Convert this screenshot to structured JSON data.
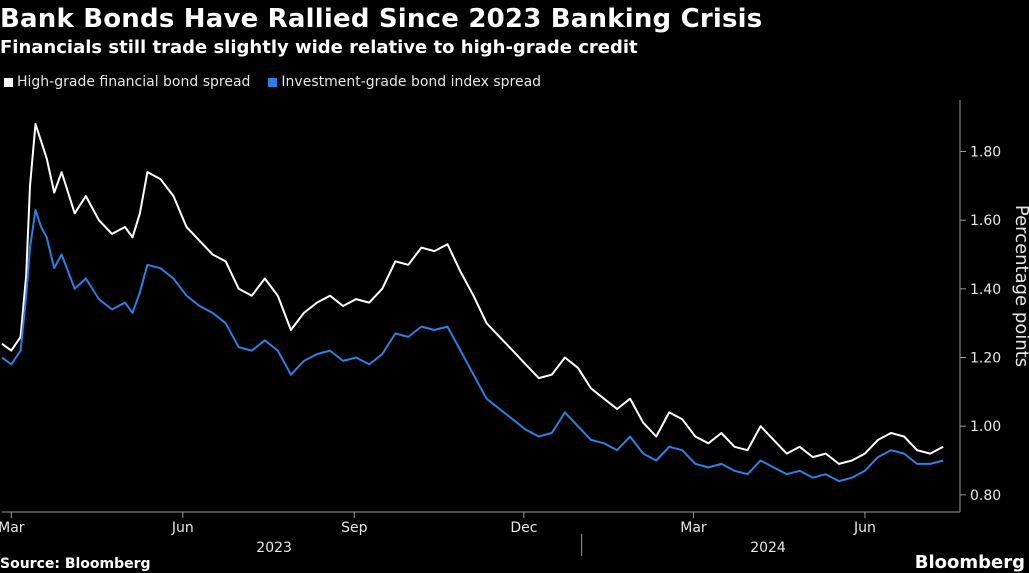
{
  "header": {
    "title": "Bank Bonds Have Rallied Since 2023 Banking Crisis",
    "subtitle": "Financials still trade slightly wide relative to high-grade credit"
  },
  "footer": {
    "source": "Source: Bloomberg",
    "brand": "Bloomberg"
  },
  "colors": {
    "background": "#000000",
    "series_financial": "#ffffff",
    "series_ig": "#2f7fe0"
  },
  "chart_data": {
    "type": "line",
    "ylabel": "Percentage points",
    "ylim": [
      0.75,
      1.95
    ],
    "yticks": [
      0.8,
      1.0,
      1.2,
      1.4,
      1.6,
      1.8
    ],
    "ytick_labels": [
      "0.80",
      "1.00",
      "1.20",
      "1.40",
      "1.60",
      "1.80"
    ],
    "xlim": [
      "2023-02-24",
      "2024-07-22"
    ],
    "x_ticks": [
      {
        "date": "2023-03-01",
        "label": "Mar"
      },
      {
        "date": "2023-06-01",
        "label": "Jun"
      },
      {
        "date": "2023-09-01",
        "label": "Sep"
      },
      {
        "date": "2023-12-01",
        "label": "Dec"
      },
      {
        "date": "2024-03-01",
        "label": "Mar"
      },
      {
        "date": "2024-06-01",
        "label": "Jun"
      }
    ],
    "year_labels": [
      {
        "label": "2023",
        "date": "2023-07-20"
      },
      {
        "label": "2024",
        "date": "2024-04-10"
      }
    ],
    "year_divider": "2024-01-01",
    "grid": false,
    "legend_position": "top-left",
    "series": [
      {
        "name": "High-grade financial bond spread",
        "color": "#ffffff",
        "points": [
          [
            "2023-02-24",
            1.24
          ],
          [
            "2023-03-01",
            1.22
          ],
          [
            "2023-03-06",
            1.26
          ],
          [
            "2023-03-09",
            1.44
          ],
          [
            "2023-03-11",
            1.7
          ],
          [
            "2023-03-14",
            1.88
          ],
          [
            "2023-03-17",
            1.83
          ],
          [
            "2023-03-20",
            1.78
          ],
          [
            "2023-03-24",
            1.68
          ],
          [
            "2023-03-28",
            1.74
          ],
          [
            "2023-04-04",
            1.62
          ],
          [
            "2023-04-10",
            1.67
          ],
          [
            "2023-04-17",
            1.6
          ],
          [
            "2023-04-24",
            1.56
          ],
          [
            "2023-05-01",
            1.58
          ],
          [
            "2023-05-05",
            1.55
          ],
          [
            "2023-05-09",
            1.62
          ],
          [
            "2023-05-13",
            1.74
          ],
          [
            "2023-05-20",
            1.72
          ],
          [
            "2023-05-27",
            1.67
          ],
          [
            "2023-06-03",
            1.58
          ],
          [
            "2023-06-10",
            1.54
          ],
          [
            "2023-06-17",
            1.5
          ],
          [
            "2023-06-24",
            1.48
          ],
          [
            "2023-07-01",
            1.4
          ],
          [
            "2023-07-08",
            1.38
          ],
          [
            "2023-07-15",
            1.43
          ],
          [
            "2023-07-22",
            1.38
          ],
          [
            "2023-07-29",
            1.28
          ],
          [
            "2023-08-05",
            1.33
          ],
          [
            "2023-08-12",
            1.36
          ],
          [
            "2023-08-19",
            1.38
          ],
          [
            "2023-08-26",
            1.35
          ],
          [
            "2023-09-02",
            1.37
          ],
          [
            "2023-09-09",
            1.36
          ],
          [
            "2023-09-16",
            1.4
          ],
          [
            "2023-09-23",
            1.48
          ],
          [
            "2023-09-30",
            1.47
          ],
          [
            "2023-10-07",
            1.52
          ],
          [
            "2023-10-14",
            1.51
          ],
          [
            "2023-10-21",
            1.53
          ],
          [
            "2023-10-28",
            1.45
          ],
          [
            "2023-11-04",
            1.38
          ],
          [
            "2023-11-11",
            1.3
          ],
          [
            "2023-11-18",
            1.26
          ],
          [
            "2023-11-25",
            1.22
          ],
          [
            "2023-12-02",
            1.18
          ],
          [
            "2023-12-09",
            1.14
          ],
          [
            "2023-12-16",
            1.15
          ],
          [
            "2023-12-23",
            1.2
          ],
          [
            "2023-12-30",
            1.17
          ],
          [
            "2024-01-06",
            1.11
          ],
          [
            "2024-01-13",
            1.08
          ],
          [
            "2024-01-20",
            1.05
          ],
          [
            "2024-01-27",
            1.08
          ],
          [
            "2024-02-03",
            1.01
          ],
          [
            "2024-02-10",
            0.97
          ],
          [
            "2024-02-17",
            1.04
          ],
          [
            "2024-02-24",
            1.02
          ],
          [
            "2024-03-02",
            0.97
          ],
          [
            "2024-03-09",
            0.95
          ],
          [
            "2024-03-16",
            0.98
          ],
          [
            "2024-03-23",
            0.94
          ],
          [
            "2024-03-30",
            0.93
          ],
          [
            "2024-04-06",
            1.0
          ],
          [
            "2024-04-13",
            0.96
          ],
          [
            "2024-04-20",
            0.92
          ],
          [
            "2024-04-27",
            0.94
          ],
          [
            "2024-05-04",
            0.91
          ],
          [
            "2024-05-11",
            0.92
          ],
          [
            "2024-05-18",
            0.89
          ],
          [
            "2024-05-25",
            0.9
          ],
          [
            "2024-06-01",
            0.92
          ],
          [
            "2024-06-08",
            0.96
          ],
          [
            "2024-06-15",
            0.98
          ],
          [
            "2024-06-22",
            0.97
          ],
          [
            "2024-06-29",
            0.93
          ],
          [
            "2024-07-06",
            0.92
          ],
          [
            "2024-07-13",
            0.94
          ]
        ]
      },
      {
        "name": "Investment-grade bond index spread",
        "color": "#2f7fe0",
        "points": [
          [
            "2023-02-24",
            1.2
          ],
          [
            "2023-03-01",
            1.18
          ],
          [
            "2023-03-06",
            1.22
          ],
          [
            "2023-03-09",
            1.38
          ],
          [
            "2023-03-11",
            1.52
          ],
          [
            "2023-03-14",
            1.63
          ],
          [
            "2023-03-17",
            1.58
          ],
          [
            "2023-03-20",
            1.55
          ],
          [
            "2023-03-24",
            1.46
          ],
          [
            "2023-03-28",
            1.5
          ],
          [
            "2023-04-04",
            1.4
          ],
          [
            "2023-04-10",
            1.43
          ],
          [
            "2023-04-17",
            1.37
          ],
          [
            "2023-04-24",
            1.34
          ],
          [
            "2023-05-01",
            1.36
          ],
          [
            "2023-05-05",
            1.33
          ],
          [
            "2023-05-09",
            1.39
          ],
          [
            "2023-05-13",
            1.47
          ],
          [
            "2023-05-20",
            1.46
          ],
          [
            "2023-05-27",
            1.43
          ],
          [
            "2023-06-03",
            1.38
          ],
          [
            "2023-06-10",
            1.35
          ],
          [
            "2023-06-17",
            1.33
          ],
          [
            "2023-06-24",
            1.3
          ],
          [
            "2023-07-01",
            1.23
          ],
          [
            "2023-07-08",
            1.22
          ],
          [
            "2023-07-15",
            1.25
          ],
          [
            "2023-07-22",
            1.22
          ],
          [
            "2023-07-29",
            1.15
          ],
          [
            "2023-08-05",
            1.19
          ],
          [
            "2023-08-12",
            1.21
          ],
          [
            "2023-08-19",
            1.22
          ],
          [
            "2023-08-26",
            1.19
          ],
          [
            "2023-09-02",
            1.2
          ],
          [
            "2023-09-09",
            1.18
          ],
          [
            "2023-09-16",
            1.21
          ],
          [
            "2023-09-23",
            1.27
          ],
          [
            "2023-09-30",
            1.26
          ],
          [
            "2023-10-07",
            1.29
          ],
          [
            "2023-10-14",
            1.28
          ],
          [
            "2023-10-21",
            1.29
          ],
          [
            "2023-10-28",
            1.22
          ],
          [
            "2023-11-04",
            1.15
          ],
          [
            "2023-11-11",
            1.08
          ],
          [
            "2023-11-18",
            1.05
          ],
          [
            "2023-11-25",
            1.02
          ],
          [
            "2023-12-02",
            0.99
          ],
          [
            "2023-12-09",
            0.97
          ],
          [
            "2023-12-16",
            0.98
          ],
          [
            "2023-12-23",
            1.04
          ],
          [
            "2023-12-30",
            1.0
          ],
          [
            "2024-01-06",
            0.96
          ],
          [
            "2024-01-13",
            0.95
          ],
          [
            "2024-01-20",
            0.93
          ],
          [
            "2024-01-27",
            0.97
          ],
          [
            "2024-02-03",
            0.92
          ],
          [
            "2024-02-10",
            0.9
          ],
          [
            "2024-02-17",
            0.94
          ],
          [
            "2024-02-24",
            0.93
          ],
          [
            "2024-03-02",
            0.89
          ],
          [
            "2024-03-09",
            0.88
          ],
          [
            "2024-03-16",
            0.89
          ],
          [
            "2024-03-23",
            0.87
          ],
          [
            "2024-03-30",
            0.86
          ],
          [
            "2024-04-06",
            0.9
          ],
          [
            "2024-04-13",
            0.88
          ],
          [
            "2024-04-20",
            0.86
          ],
          [
            "2024-04-27",
            0.87
          ],
          [
            "2024-05-04",
            0.85
          ],
          [
            "2024-05-11",
            0.86
          ],
          [
            "2024-05-18",
            0.84
          ],
          [
            "2024-05-25",
            0.85
          ],
          [
            "2024-06-01",
            0.87
          ],
          [
            "2024-06-08",
            0.91
          ],
          [
            "2024-06-15",
            0.93
          ],
          [
            "2024-06-22",
            0.92
          ],
          [
            "2024-06-29",
            0.89
          ],
          [
            "2024-07-06",
            0.89
          ],
          [
            "2024-07-13",
            0.9
          ]
        ]
      }
    ]
  }
}
